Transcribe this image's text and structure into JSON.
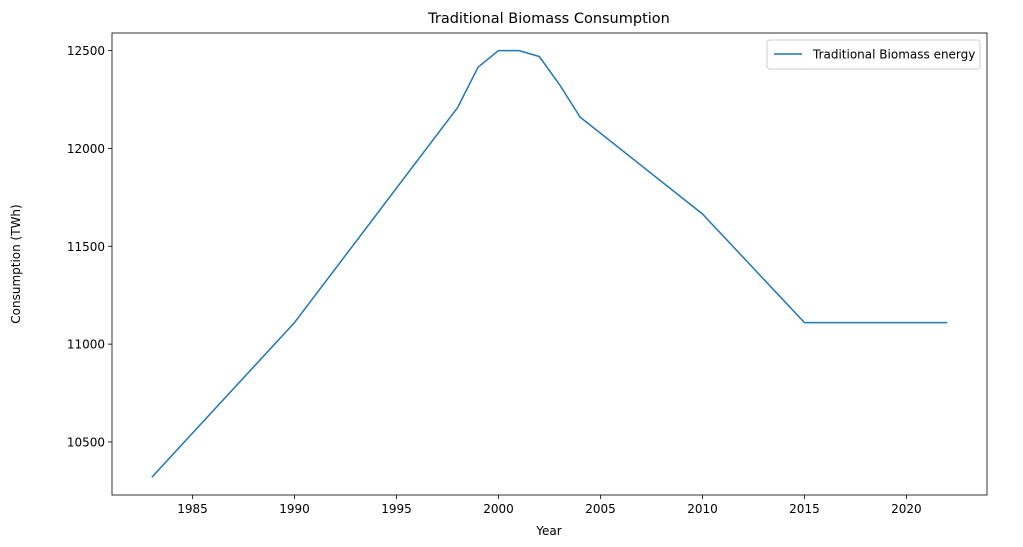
{
  "chart_data": {
    "type": "line",
    "title": "Traditional Biomass Consumption",
    "xlabel": "Year",
    "ylabel": "Consumption (TWh)",
    "xlim": [
      1981.05,
      2023.95
    ],
    "ylim": [
      10229,
      12590
    ],
    "xticks": [
      1985,
      1990,
      1995,
      2000,
      2005,
      2010,
      2015,
      2020
    ],
    "yticks": [
      10500,
      11000,
      11500,
      12000,
      12500
    ],
    "grid": false,
    "legend_position": "top-right",
    "series": [
      {
        "name": "Traditional Biomass energy",
        "color": "#1f77b4",
        "x": [
          1983,
          1990,
          1998,
          1999,
          2000,
          2001,
          2002,
          2003,
          2004,
          2010,
          2015,
          2022
        ],
        "y": [
          10320,
          11110,
          12210,
          12415,
          12500,
          12500,
          12470,
          12325,
          12160,
          11665,
          11110,
          11110
        ]
      }
    ]
  }
}
